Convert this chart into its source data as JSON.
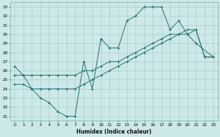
{
  "xlabel": "Humidex (Indice chaleur)",
  "bg_color": "#cce8e8",
  "line_color": "#1a6e6e",
  "grid_color": "#aacccc",
  "xlim": [
    -0.5,
    23.5
  ],
  "ylim": [
    20.5,
    33.5
  ],
  "xticks": [
    0,
    1,
    2,
    3,
    4,
    5,
    6,
    7,
    8,
    9,
    10,
    11,
    12,
    13,
    14,
    15,
    16,
    17,
    18,
    19,
    20,
    21,
    22,
    23
  ],
  "yticks": [
    21,
    22,
    23,
    24,
    25,
    26,
    27,
    28,
    29,
    30,
    31,
    32,
    33
  ],
  "line1_x": [
    0,
    1,
    2,
    3,
    4,
    5,
    6,
    7,
    8,
    9,
    10,
    11,
    12,
    13,
    14,
    15,
    16,
    17,
    18,
    19,
    20,
    21,
    23
  ],
  "line1_y": [
    26.5,
    25.5,
    24.0,
    23.0,
    22.5,
    21.5,
    21.0,
    21.0,
    27.0,
    24.0,
    29.5,
    28.5,
    28.5,
    31.5,
    32.0,
    33.0,
    33.0,
    33.0,
    30.5,
    31.5,
    30.0,
    29.0,
    27.5
  ],
  "line2_x": [
    0,
    1,
    2,
    3,
    4,
    5,
    6,
    7,
    8,
    9,
    10,
    11,
    12,
    13,
    14,
    15,
    16,
    17,
    18,
    19,
    20,
    21,
    22,
    23
  ],
  "line2_y": [
    25.5,
    25.5,
    25.5,
    25.5,
    25.5,
    25.5,
    25.5,
    25.5,
    26.0,
    26.0,
    26.5,
    27.0,
    27.0,
    27.5,
    28.0,
    28.5,
    29.0,
    29.5,
    30.0,
    30.0,
    30.5,
    30.5,
    27.5,
    27.5
  ],
  "line3_x": [
    0,
    1,
    2,
    3,
    4,
    5,
    6,
    7,
    8,
    9,
    10,
    11,
    12,
    13,
    14,
    15,
    16,
    17,
    18,
    19,
    20,
    21,
    22,
    23
  ],
  "line3_y": [
    24.5,
    24.5,
    24.0,
    24.0,
    24.0,
    24.0,
    24.0,
    24.0,
    24.5,
    25.0,
    25.5,
    26.0,
    26.5,
    27.0,
    27.5,
    28.0,
    28.5,
    29.0,
    29.5,
    30.0,
    30.0,
    30.5,
    27.5,
    27.5
  ]
}
